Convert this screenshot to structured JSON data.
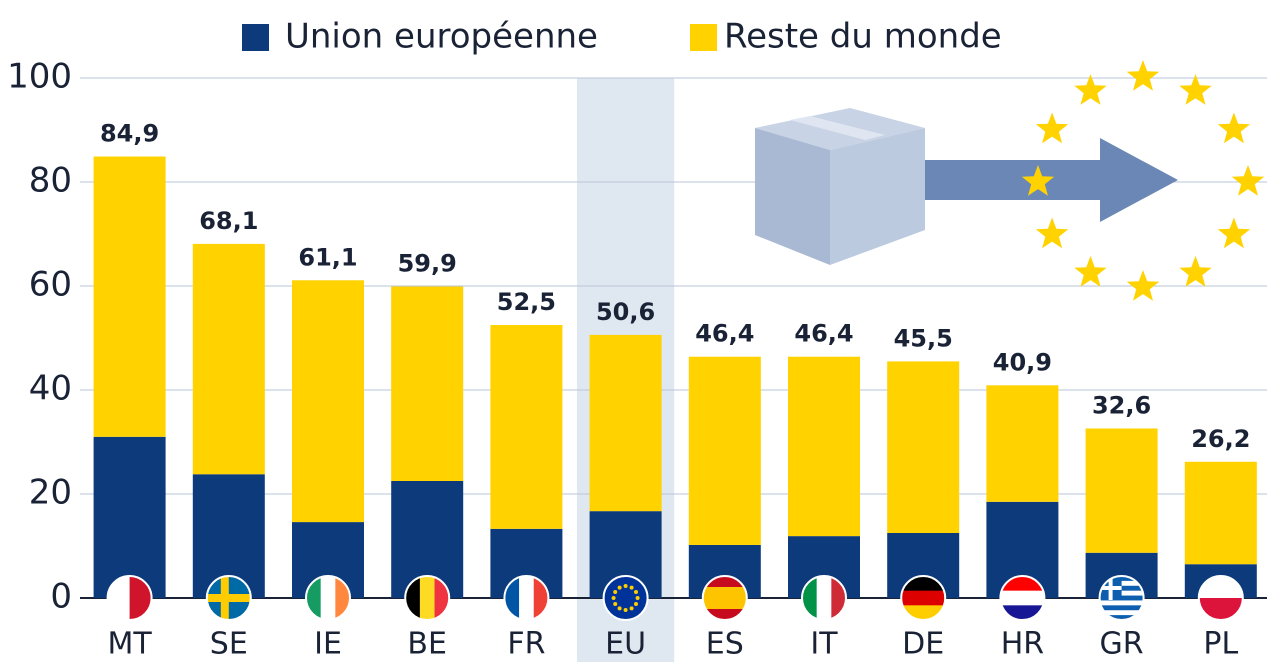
{
  "chart_data": {
    "type": "stacked-bar",
    "categories": [
      "MT",
      "SE",
      "IE",
      "BE",
      "FR",
      "EU",
      "ES",
      "IT",
      "DE",
      "HR",
      "GR",
      "PL"
    ],
    "series": [
      {
        "name": "Union européenne",
        "color": "#0d3a7a",
        "values": [
          31.0,
          23.8,
          14.6,
          22.5,
          13.3,
          16.7,
          10.2,
          11.9,
          12.5,
          18.5,
          8.7,
          6.5
        ]
      },
      {
        "name": "Reste du monde",
        "color": "#ffd200",
        "values": [
          53.9,
          44.3,
          46.5,
          37.4,
          39.2,
          33.9,
          36.2,
          34.5,
          33.0,
          22.4,
          23.9,
          19.7
        ]
      }
    ],
    "totals": [
      84.9,
      68.1,
      61.1,
      59.9,
      52.5,
      50.6,
      46.4,
      46.4,
      45.5,
      40.9,
      32.6,
      26.2
    ],
    "total_labels": [
      "84,9",
      "68,1",
      "61,1",
      "59,9",
      "52,5",
      "50,6",
      "46,4",
      "46,4",
      "45,5",
      "40,9",
      "32,6",
      "26,2"
    ],
    "highlight": "EU",
    "ylim": [
      0,
      100
    ],
    "yticks": [
      0,
      20,
      40,
      60,
      80,
      100
    ],
    "grid": true
  }
}
